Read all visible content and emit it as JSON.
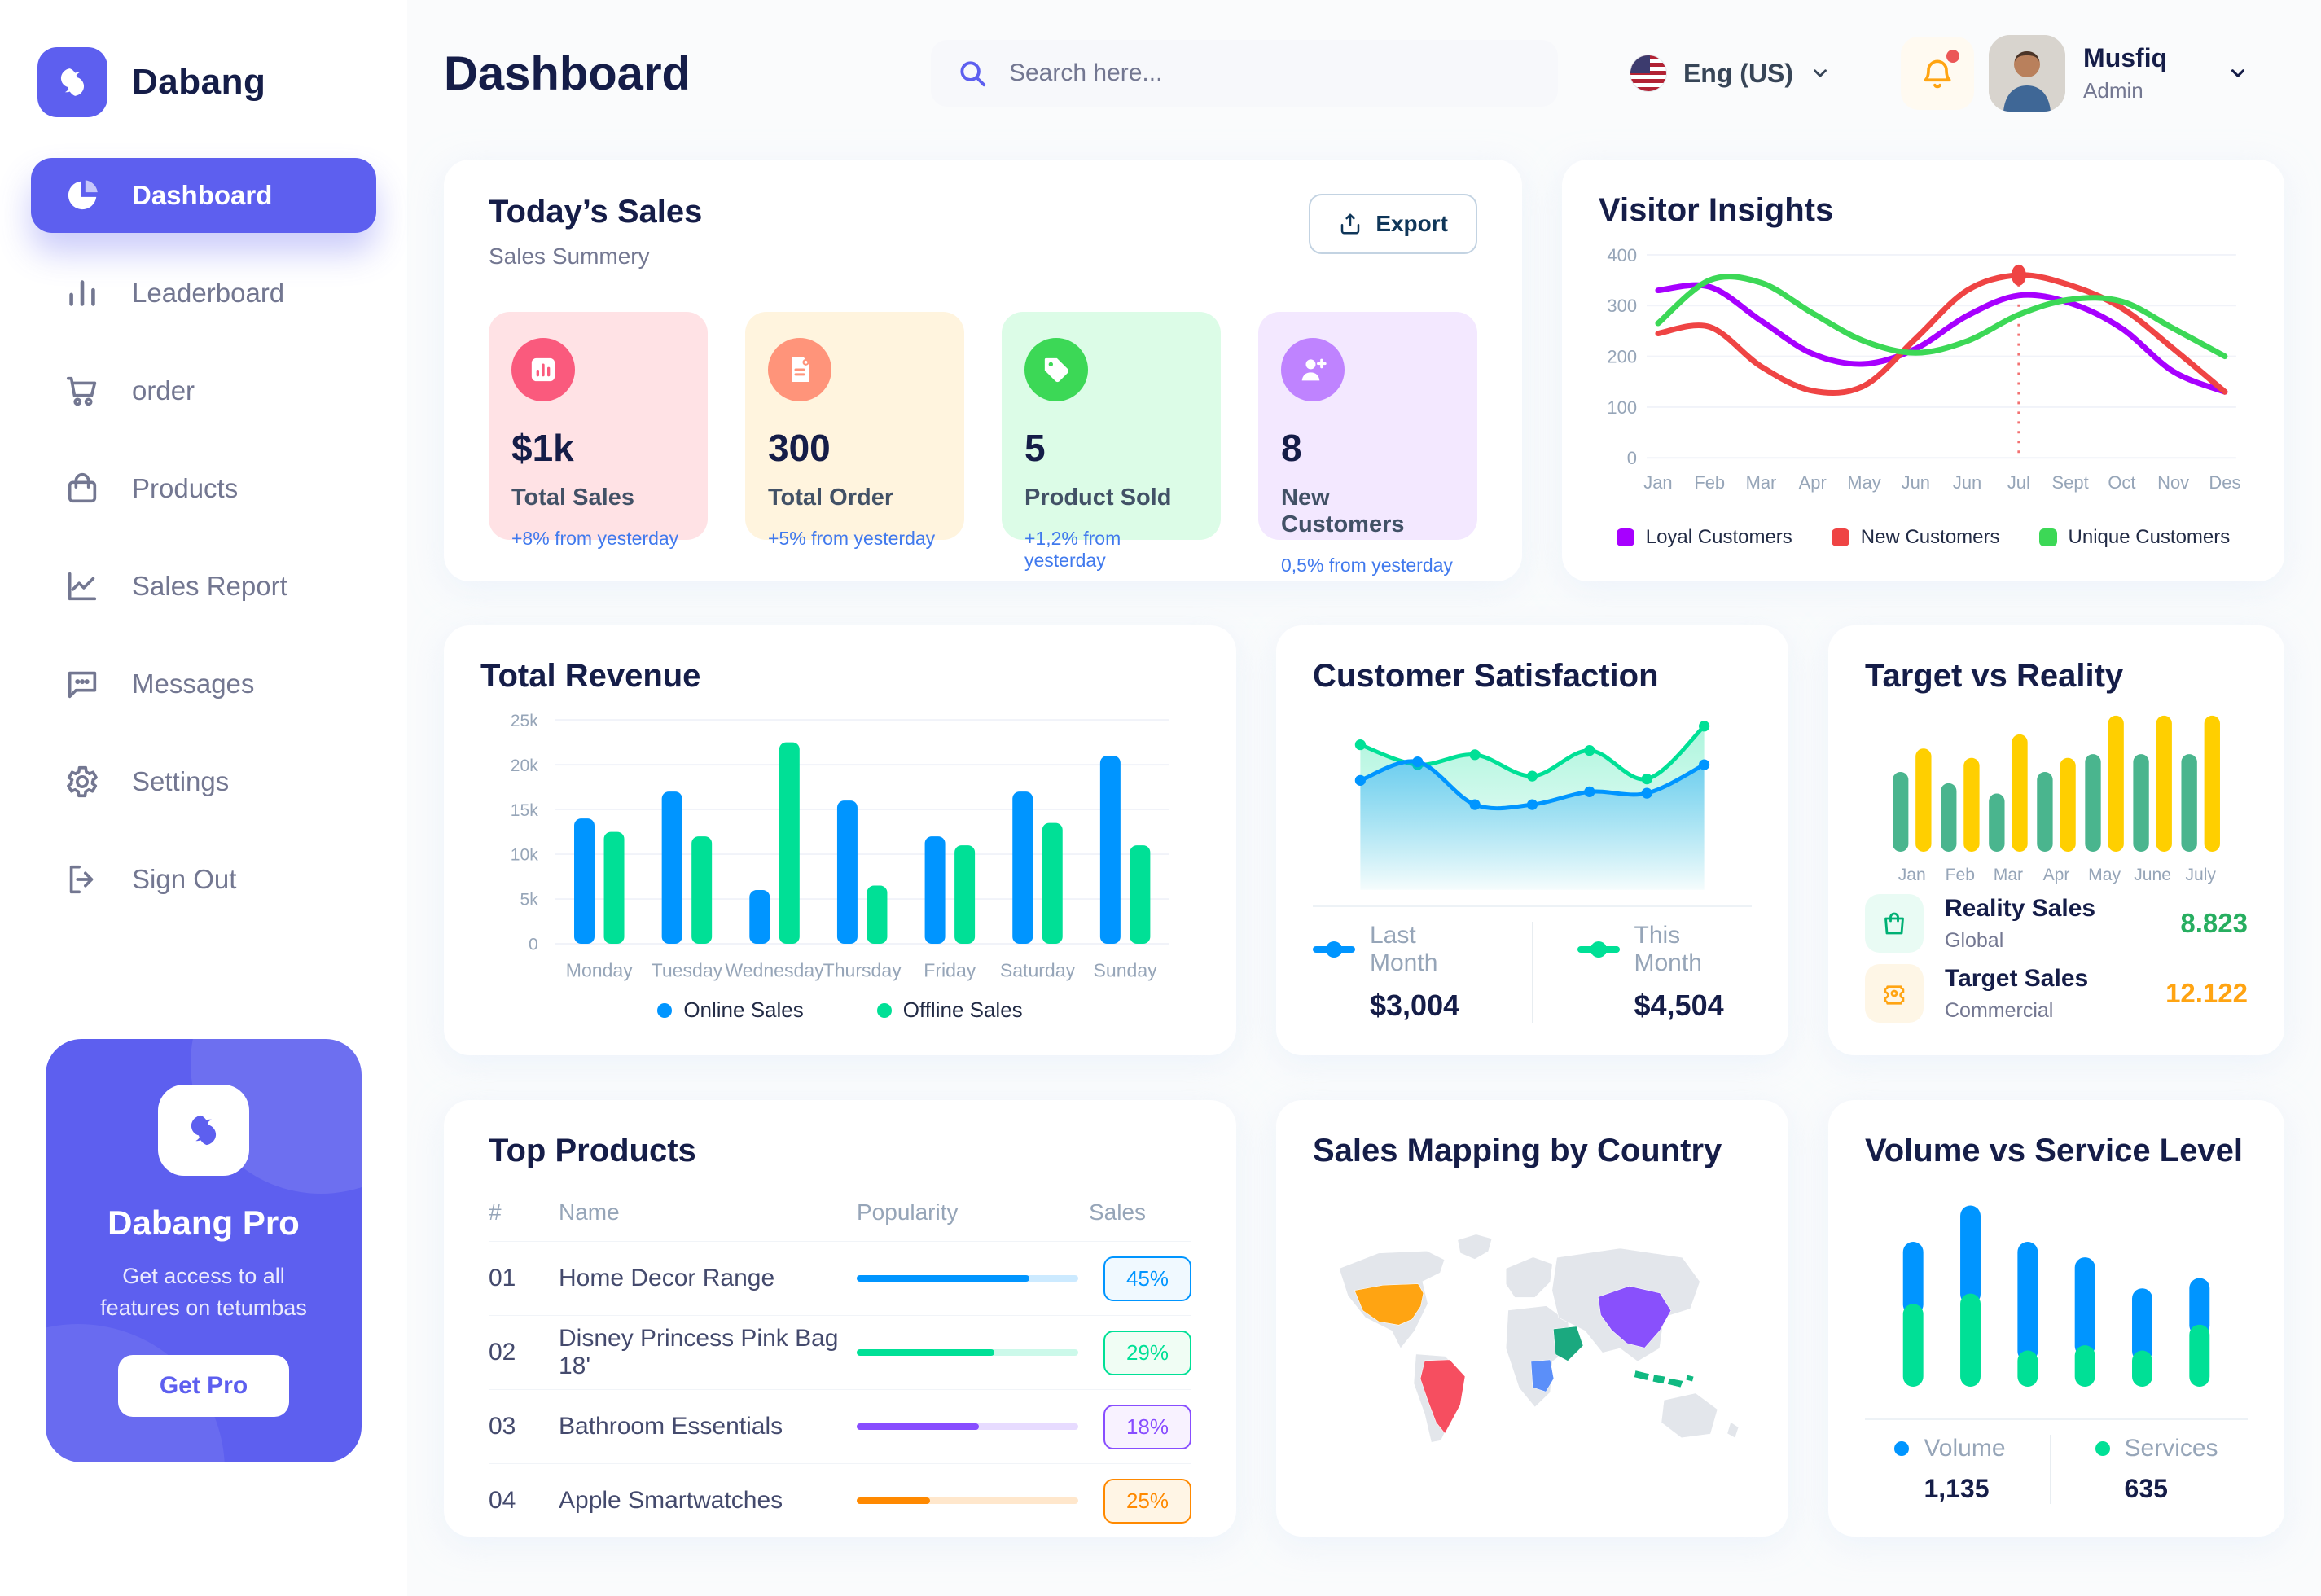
{
  "brand": {
    "name": "Dabang",
    "accent": "#5D5FEF"
  },
  "header": {
    "title": "Dashboard",
    "search_placeholder": "Search here...",
    "language": "Eng (US)",
    "user": {
      "name": "Musfiq",
      "role": "Admin"
    }
  },
  "sidebar": {
    "items": [
      {
        "label": "Dashboard",
        "icon": "dashboard-icon",
        "active": true
      },
      {
        "label": "Leaderboard",
        "icon": "leaderboard-icon",
        "active": false
      },
      {
        "label": "order",
        "icon": "cart-icon",
        "active": false
      },
      {
        "label": "Products",
        "icon": "bag-icon",
        "active": false
      },
      {
        "label": "Sales Report",
        "icon": "line-chart-icon",
        "active": false
      },
      {
        "label": "Messages",
        "icon": "message-icon",
        "active": false
      },
      {
        "label": "Settings",
        "icon": "gear-icon",
        "active": false
      },
      {
        "label": "Sign Out",
        "icon": "signout-icon",
        "active": false
      }
    ],
    "pro": {
      "title": "Dabang Pro",
      "subtitle": "Get access to all features on tetumbas",
      "button": "Get Pro"
    }
  },
  "todays_sales": {
    "title": "Today’s Sales",
    "subtitle": "Sales Summery",
    "export_label": "Export",
    "cards": [
      {
        "value": "$1k",
        "label": "Total Sales",
        "delta": "+8% from yesterday",
        "bg": "#FFE2E5",
        "icon_bg": "#FA5A7D",
        "icon": "bar-chart-icon"
      },
      {
        "value": "300",
        "label": "Total Order",
        "delta": "+5% from yesterday",
        "bg": "#FFF4DE",
        "icon_bg": "#FF947A",
        "icon": "order-note-icon"
      },
      {
        "value": "5",
        "label": "Product Sold",
        "delta": "+1,2% from yesterday",
        "bg": "#DCFCE7",
        "icon_bg": "#3CD856",
        "icon": "tag-icon"
      },
      {
        "value": "8",
        "label": "New Customers",
        "delta": "0,5% from yesterday",
        "bg": "#F3E8FF",
        "icon_bg": "#BF83FF",
        "icon": "user-plus-icon"
      }
    ]
  },
  "chart_data": [
    {
      "id": "visitor_insights",
      "type": "line",
      "title": "Visitor Insights",
      "x": [
        "Jan",
        "Feb",
        "Mar",
        "Apr",
        "May",
        "Jun",
        "Jun",
        "Jul",
        "Sept",
        "Oct",
        "Nov",
        "Des"
      ],
      "ylim": [
        0,
        400
      ],
      "yticks": [
        0,
        100,
        200,
        300,
        400
      ],
      "grid": true,
      "legend_position": "bottom",
      "series": [
        {
          "name": "Loyal Customers",
          "color": "#A700FF",
          "values": [
            330,
            337,
            270,
            205,
            185,
            215,
            280,
            320,
            305,
            255,
            170,
            130
          ]
        },
        {
          "name": "New Customers",
          "color": "#EF4444",
          "values": [
            245,
            258,
            180,
            132,
            142,
            235,
            330,
            360,
            340,
            295,
            215,
            130
          ]
        },
        {
          "name": "Unique Customers",
          "color": "#3CD856",
          "values": [
            265,
            350,
            345,
            285,
            230,
            207,
            230,
            282,
            312,
            308,
            255,
            200
          ]
        }
      ],
      "highlight": {
        "series": "New Customers",
        "x_index": 7
      }
    },
    {
      "id": "total_revenue",
      "type": "bar",
      "title": "Total Revenue",
      "categories": [
        "Monday",
        "Tuesday",
        "Wednesday",
        "Thursday",
        "Friday",
        "Saturday",
        "Sunday"
      ],
      "ylim": [
        0,
        25000
      ],
      "yticks": [
        "0",
        "5k",
        "10k",
        "15k",
        "20k",
        "25k"
      ],
      "grid": true,
      "legend_position": "bottom",
      "series": [
        {
          "name": "Online Sales",
          "color": "#0095FF",
          "values": [
            14000,
            17000,
            6000,
            16000,
            12000,
            17000,
            21000
          ]
        },
        {
          "name": "Offline Sales",
          "color": "#00E096",
          "values": [
            12500,
            12000,
            22500,
            6500,
            11000,
            13500,
            11000
          ]
        }
      ]
    },
    {
      "id": "customer_satisfaction",
      "type": "area",
      "title": "Customer Satisfaction",
      "ylim": [
        0,
        100
      ],
      "grid": false,
      "legend_position": "bottom",
      "series": [
        {
          "name": "Last Month",
          "color": "#0095FF",
          "total": "$3,004",
          "values": [
            55,
            68,
            38,
            38,
            47,
            46,
            66
          ]
        },
        {
          "name": "This Month",
          "color": "#00E096",
          "total": "$4,504",
          "values": [
            80,
            66,
            73,
            58,
            76,
            56,
            93
          ]
        }
      ]
    },
    {
      "id": "target_vs_reality",
      "type": "bar",
      "title": "Target vs Reality",
      "categories": [
        "Jan",
        "Feb",
        "Mar",
        "Apr",
        "May",
        "June",
        "July"
      ],
      "ylim": [
        0,
        14.5
      ],
      "grid": false,
      "legend_position": "bottom",
      "series": [
        {
          "name": "Reality Sales",
          "subtitle": "Global",
          "color": "#4AB58E",
          "value_label": "8.823",
          "value_color": "#27AE60",
          "icon_bg": "#E9FBF4",
          "icon": "shopping-bag-icon",
          "values": [
            8.5,
            7.3,
            6.2,
            8.5,
            10.4,
            10.4,
            10.4
          ]
        },
        {
          "name": "Target Sales",
          "subtitle": "Commercial",
          "color": "#FFCF00",
          "value_label": "12.122",
          "value_color": "#FFA412",
          "icon_bg": "#FEF6E6",
          "icon": "ticket-icon",
          "values": [
            11,
            10,
            12.5,
            10,
            14.5,
            14.5,
            14.5
          ]
        }
      ]
    },
    {
      "id": "volume_service",
      "type": "stacked-bar",
      "title": "Volume vs Service Level",
      "grid": false,
      "legend_position": "bottom",
      "series": [
        {
          "name": "Volume",
          "color": "#0095FF",
          "total": "1,135",
          "values": [
            6,
            8.5,
            10.5,
            8.5,
            6,
            4.5
          ]
        },
        {
          "name": "Services",
          "color": "#00E096",
          "total": "635",
          "values": [
            8,
            9,
            3.5,
            4,
            3.5,
            6
          ]
        }
      ]
    }
  ],
  "top_products": {
    "title": "Top Products",
    "columns": [
      "#",
      "Name",
      "Popularity",
      "Sales"
    ],
    "rows": [
      {
        "num": "01",
        "name": "Home Decor Range",
        "popularity_pct": 78,
        "sales": "45%",
        "color": "#0095FF",
        "badge_bg": "#F0F9FF"
      },
      {
        "num": "02",
        "name": "Disney Princess Pink Bag 18'",
        "popularity_pct": 62,
        "sales": "29%",
        "color": "#00E096",
        "badge_bg": "#F0FDF4"
      },
      {
        "num": "03",
        "name": "Bathroom Essentials",
        "popularity_pct": 55,
        "sales": "18%",
        "color": "#884DFF",
        "badge_bg": "#F8F2FF"
      },
      {
        "num": "04",
        "name": "Apple Smartwatches",
        "popularity_pct": 33,
        "sales": "25%",
        "color": "#FF8900",
        "badge_bg": "#FFF5E5"
      }
    ]
  },
  "sales_map": {
    "title": "Sales Mapping by Country",
    "countries": [
      {
        "name": "United States",
        "color": "#FFA412"
      },
      {
        "name": "Brazil",
        "color": "#F64E60"
      },
      {
        "name": "China",
        "color": "#8950FC"
      },
      {
        "name": "Saudi Arabia",
        "color": "#1BA97F"
      },
      {
        "name": "DR Congo",
        "color": "#5B8FF9"
      },
      {
        "name": "Indonesia",
        "color": "#10B981"
      }
    ]
  }
}
